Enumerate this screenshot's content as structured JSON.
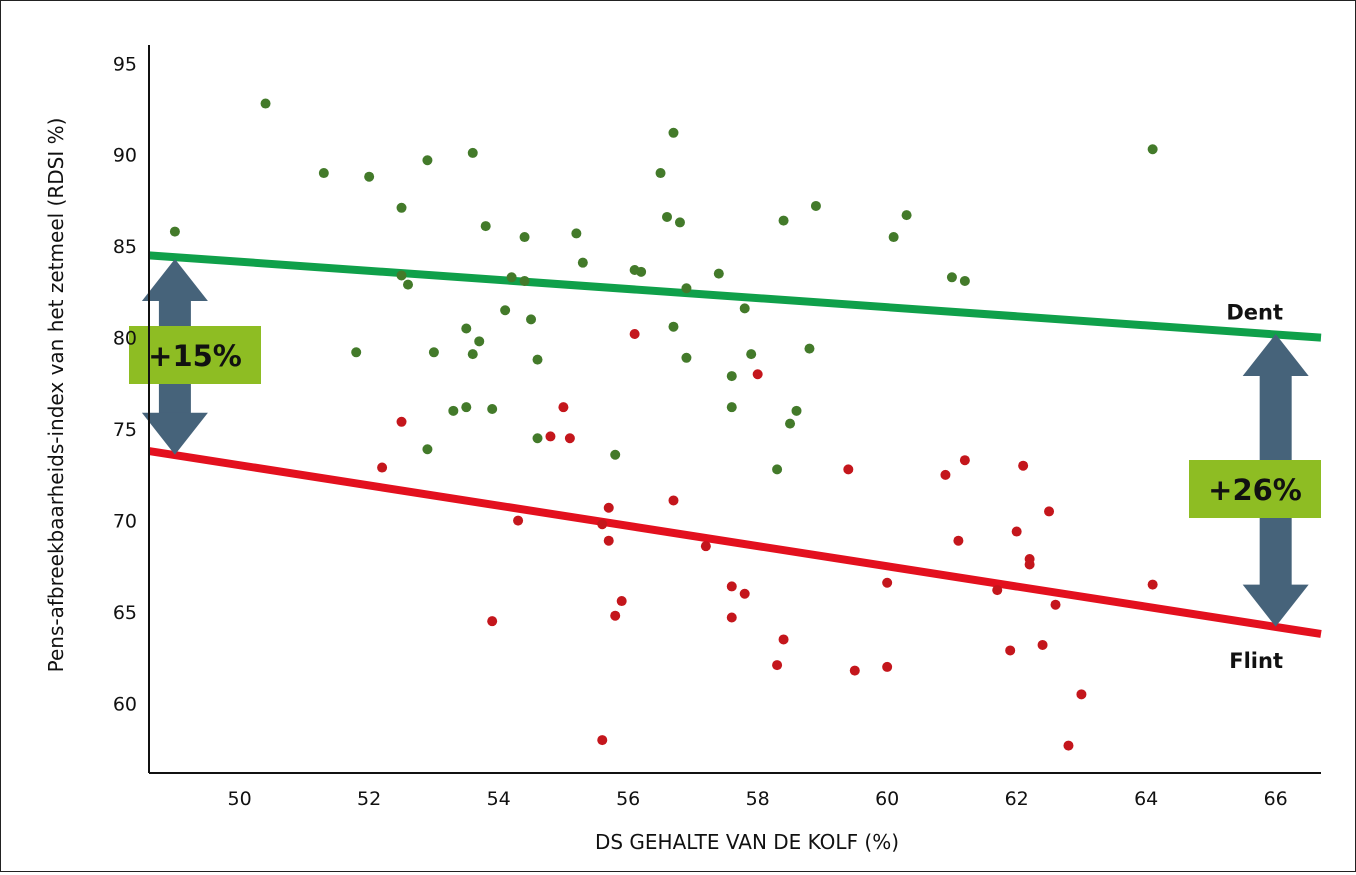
{
  "chart_data": {
    "type": "scatter",
    "xlabel": "DS GEHALTE VAN DE KOLF (%)",
    "ylabel": "Pens-afbreekbaarheids-index van het zetmeel (RDSI %)",
    "xlim": [
      48.6,
      66.7
    ],
    "ylim": [
      56.2,
      96.0
    ],
    "x_ticks": [
      50,
      52,
      54,
      56,
      58,
      60,
      62,
      64,
      66
    ],
    "y_ticks": [
      60,
      65,
      70,
      75,
      80,
      85,
      90,
      95
    ],
    "grid": false,
    "series": [
      {
        "name": "Dent",
        "color": "#437a2a",
        "points": [
          [
            49.0,
            85.8
          ],
          [
            50.4,
            92.8
          ],
          [
            51.3,
            89.0
          ],
          [
            51.8,
            79.2
          ],
          [
            52.0,
            88.8
          ],
          [
            52.5,
            87.1
          ],
          [
            52.5,
            83.4
          ],
          [
            52.6,
            82.9
          ],
          [
            52.9,
            89.7
          ],
          [
            52.9,
            73.9
          ],
          [
            53.0,
            79.2
          ],
          [
            53.3,
            76.0
          ],
          [
            53.5,
            80.5
          ],
          [
            53.5,
            76.2
          ],
          [
            53.6,
            90.1
          ],
          [
            53.6,
            79.1
          ],
          [
            53.7,
            79.8
          ],
          [
            53.8,
            86.1
          ],
          [
            53.9,
            76.1
          ],
          [
            54.1,
            81.5
          ],
          [
            54.2,
            83.3
          ],
          [
            54.4,
            85.5
          ],
          [
            54.4,
            83.1
          ],
          [
            54.5,
            81.0
          ],
          [
            54.6,
            74.5
          ],
          [
            54.6,
            78.8
          ],
          [
            55.2,
            85.7
          ],
          [
            55.3,
            84.1
          ],
          [
            55.8,
            73.6
          ],
          [
            56.1,
            83.7
          ],
          [
            56.2,
            83.6
          ],
          [
            56.5,
            89.0
          ],
          [
            56.6,
            86.6
          ],
          [
            56.7,
            80.6
          ],
          [
            56.7,
            91.2
          ],
          [
            56.8,
            86.3
          ],
          [
            56.9,
            82.7
          ],
          [
            56.9,
            78.9
          ],
          [
            57.4,
            83.5
          ],
          [
            57.6,
            77.9
          ],
          [
            57.6,
            76.2
          ],
          [
            57.8,
            81.6
          ],
          [
            57.9,
            79.1
          ],
          [
            58.3,
            72.8
          ],
          [
            58.4,
            86.4
          ],
          [
            58.5,
            75.3
          ],
          [
            58.6,
            76.0
          ],
          [
            58.8,
            79.4
          ],
          [
            58.9,
            87.2
          ],
          [
            60.1,
            85.5
          ],
          [
            60.3,
            86.7
          ],
          [
            61.0,
            83.3
          ],
          [
            61.2,
            83.1
          ],
          [
            64.1,
            90.3
          ]
        ],
        "trend": [
          [
            48.6,
            84.5
          ],
          [
            66.7,
            80.0
          ]
        ]
      },
      {
        "name": "Flint",
        "color": "#c4161c",
        "points": [
          [
            52.2,
            72.9
          ],
          [
            52.5,
            75.4
          ],
          [
            53.9,
            64.5
          ],
          [
            54.3,
            70.0
          ],
          [
            54.8,
            74.6
          ],
          [
            55.0,
            76.2
          ],
          [
            55.1,
            74.5
          ],
          [
            55.6,
            69.8
          ],
          [
            55.6,
            58.0
          ],
          [
            55.7,
            70.7
          ],
          [
            55.7,
            68.9
          ],
          [
            55.8,
            64.8
          ],
          [
            55.9,
            65.6
          ],
          [
            56.1,
            80.2
          ],
          [
            56.7,
            71.1
          ],
          [
            57.2,
            68.6
          ],
          [
            57.6,
            66.4
          ],
          [
            57.6,
            64.7
          ],
          [
            57.8,
            66.0
          ],
          [
            58.0,
            78.0
          ],
          [
            58.3,
            62.1
          ],
          [
            58.4,
            63.5
          ],
          [
            59.4,
            72.8
          ],
          [
            59.5,
            61.8
          ],
          [
            60.0,
            66.6
          ],
          [
            60.0,
            62.0
          ],
          [
            60.9,
            72.5
          ],
          [
            61.1,
            68.9
          ],
          [
            61.2,
            73.3
          ],
          [
            61.7,
            66.2
          ],
          [
            61.9,
            62.9
          ],
          [
            62.0,
            69.4
          ],
          [
            62.1,
            73.0
          ],
          [
            62.2,
            67.9
          ],
          [
            62.2,
            67.6
          ],
          [
            62.4,
            63.2
          ],
          [
            62.5,
            70.5
          ],
          [
            62.6,
            65.4
          ],
          [
            62.8,
            57.7
          ],
          [
            63.0,
            60.5
          ],
          [
            64.1,
            66.5
          ]
        ],
        "trend": [
          [
            48.6,
            73.8
          ],
          [
            66.7,
            63.8
          ]
        ]
      }
    ],
    "annotations": {
      "left_arrow": {
        "x": 49.0,
        "y_from": 84.3,
        "y_to": 73.6,
        "label": "+15%"
      },
      "right_arrow": {
        "x": 66.0,
        "y_from": 80.2,
        "y_to": 64.2,
        "label": "+26%"
      }
    },
    "colors": {
      "dent_line": "#0fa04a",
      "flint_line": "#e3101e",
      "arrow": "#46637a",
      "label_box": "#8ebd23"
    }
  }
}
